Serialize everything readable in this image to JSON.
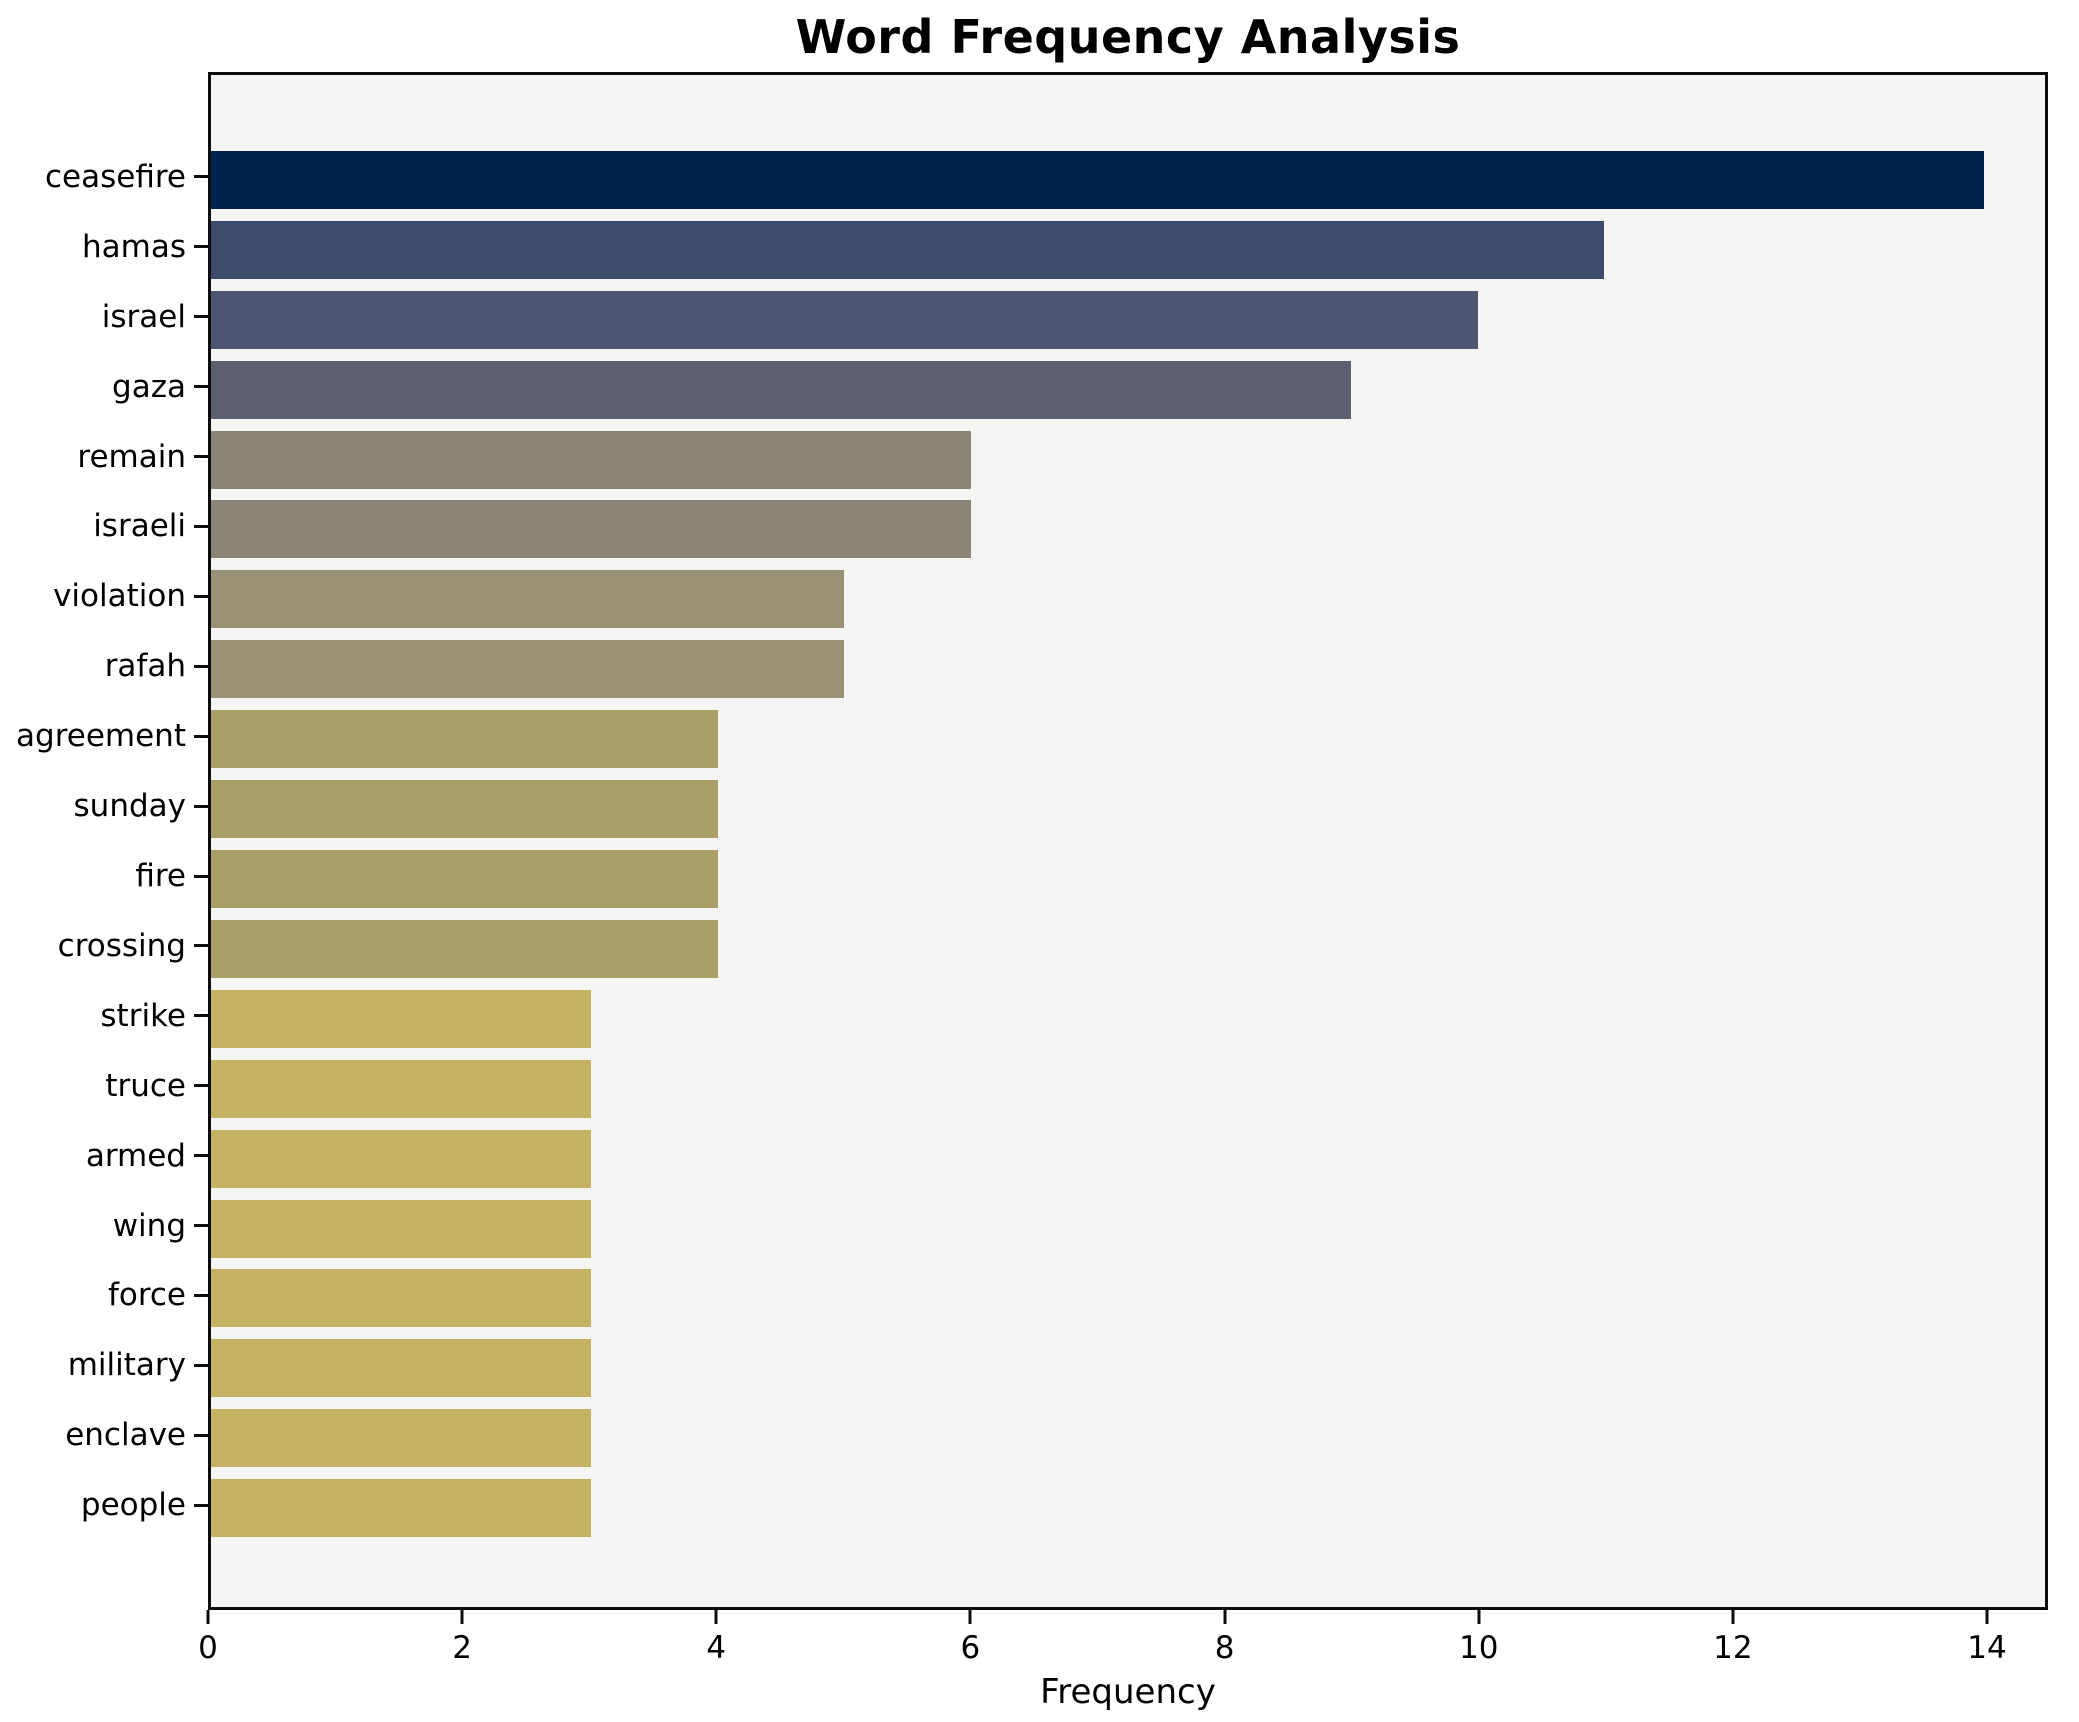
{
  "title": "Word Frequency Analysis",
  "chart_data": {
    "type": "bar",
    "orientation": "horizontal",
    "title": "Word Frequency Analysis",
    "xlabel": "Frequency",
    "ylabel": "",
    "categories": [
      "ceasefire",
      "hamas",
      "israel",
      "gaza",
      "remain",
      "israeli",
      "violation",
      "rafah",
      "agreement",
      "sunday",
      "fire",
      "crossing",
      "strike",
      "truce",
      "armed",
      "wing",
      "force",
      "military",
      "enclave",
      "people"
    ],
    "values": [
      14,
      11,
      10,
      9,
      6,
      6,
      5,
      5,
      4,
      4,
      4,
      4,
      3,
      3,
      3,
      3,
      3,
      3,
      3,
      3
    ],
    "bar_colors": [
      "#02224e",
      "#3c4a6b",
      "#4d5670",
      "#5b5f6e",
      "#8c8577",
      "#8c8577",
      "#9a9175",
      "#9a9175",
      "#ab9f68",
      "#ab9f68",
      "#ab9f68",
      "#ab9f68",
      "#c3b262",
      "#c3b262",
      "#c3b262",
      "#c3b262",
      "#c3b262",
      "#c3b262",
      "#c3b262",
      "#c3b262"
    ],
    "xticks": [
      0,
      2,
      4,
      6,
      8,
      10,
      12,
      14
    ],
    "xlim": [
      0,
      14.48
    ],
    "grid": false,
    "legend": null,
    "plot_background": "#f5f5f3",
    "figure_background": "#ffffff",
    "bar_edge": "none"
  }
}
